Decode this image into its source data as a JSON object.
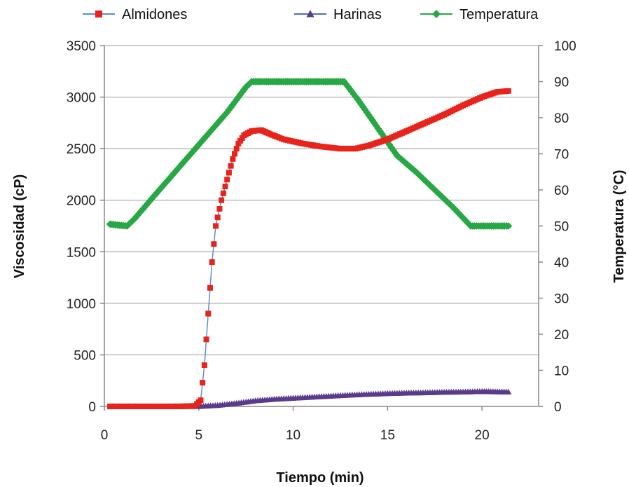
{
  "chart_data": {
    "type": "line",
    "xlabel": "Tiempo (min)",
    "ylabel": "Viscosidad (cP)",
    "y2label": "Temperatura (°C)",
    "xlim": [
      0,
      23
    ],
    "ylim": [
      0,
      3500
    ],
    "y2lim": [
      0,
      100
    ],
    "x_ticks": [
      0,
      5,
      10,
      15,
      20
    ],
    "y_ticks": [
      0,
      500,
      1000,
      1500,
      2000,
      2500,
      3000,
      3500
    ],
    "y2_ticks": [
      0,
      10,
      20,
      30,
      40,
      50,
      60,
      70,
      80,
      90,
      100
    ],
    "grid": "horizontal",
    "legend_position": "top",
    "series": [
      {
        "name": "Almidones",
        "axis": "left",
        "color": "#e8231c",
        "marker": "square",
        "line_color": "#5b8fd1",
        "points": [
          [
            0.3,
            0
          ],
          [
            1.0,
            0
          ],
          [
            2.0,
            0
          ],
          [
            3.0,
            0
          ],
          [
            4.0,
            0
          ],
          [
            4.8,
            5
          ],
          [
            5.1,
            60
          ],
          [
            5.3,
            400
          ],
          [
            5.5,
            900
          ],
          [
            5.7,
            1400
          ],
          [
            5.9,
            1750
          ],
          [
            6.2,
            2000
          ],
          [
            6.5,
            2200
          ],
          [
            6.8,
            2400
          ],
          [
            7.1,
            2550
          ],
          [
            7.4,
            2630
          ],
          [
            7.8,
            2670
          ],
          [
            8.3,
            2680
          ],
          [
            8.8,
            2640
          ],
          [
            9.5,
            2590
          ],
          [
            10.5,
            2550
          ],
          [
            11.5,
            2520
          ],
          [
            12.5,
            2500
          ],
          [
            13.3,
            2500
          ],
          [
            14.0,
            2530
          ],
          [
            15.0,
            2590
          ],
          [
            16.0,
            2670
          ],
          [
            17.0,
            2750
          ],
          [
            18.0,
            2830
          ],
          [
            19.0,
            2920
          ],
          [
            20.0,
            3000
          ],
          [
            20.8,
            3050
          ],
          [
            21.4,
            3060
          ]
        ]
      },
      {
        "name": "Harinas",
        "axis": "left",
        "color": "#5b3a8c",
        "marker": "triangle",
        "line_color": "#4a6fc9",
        "points": [
          [
            0.3,
            0
          ],
          [
            2.0,
            0
          ],
          [
            4.0,
            0
          ],
          [
            5.0,
            0
          ],
          [
            6.0,
            10
          ],
          [
            7.0,
            30
          ],
          [
            8.0,
            55
          ],
          [
            9.0,
            70
          ],
          [
            10.0,
            80
          ],
          [
            11.0,
            90
          ],
          [
            12.0,
            100
          ],
          [
            13.0,
            110
          ],
          [
            14.0,
            118
          ],
          [
            15.0,
            125
          ],
          [
            16.0,
            130
          ],
          [
            17.0,
            133
          ],
          [
            18.0,
            138
          ],
          [
            19.0,
            140
          ],
          [
            20.0,
            145
          ],
          [
            21.4,
            140
          ]
        ]
      },
      {
        "name": "Temperatura",
        "axis": "right",
        "color": "#28a745",
        "marker": "diamond",
        "line_color": "#28a745",
        "points": [
          [
            0.3,
            50.5
          ],
          [
            0.8,
            50.2
          ],
          [
            1.2,
            50.0
          ],
          [
            1.6,
            52.0
          ],
          [
            2.5,
            57.5
          ],
          [
            3.5,
            63.5
          ],
          [
            4.5,
            69.5
          ],
          [
            5.5,
            75.5
          ],
          [
            6.5,
            81.5
          ],
          [
            7.5,
            88.5
          ],
          [
            7.8,
            90.0
          ],
          [
            9.0,
            90.0
          ],
          [
            10.0,
            90.0
          ],
          [
            11.0,
            90.0
          ],
          [
            12.0,
            90.0
          ],
          [
            12.7,
            90.0
          ],
          [
            13.5,
            84.5
          ],
          [
            14.5,
            77.0
          ],
          [
            15.5,
            69.5
          ],
          [
            16.5,
            65.0
          ],
          [
            17.5,
            60.0
          ],
          [
            18.5,
            55.0
          ],
          [
            19.4,
            50.0
          ],
          [
            20.0,
            50.0
          ],
          [
            21.4,
            50.0
          ]
        ]
      }
    ]
  }
}
